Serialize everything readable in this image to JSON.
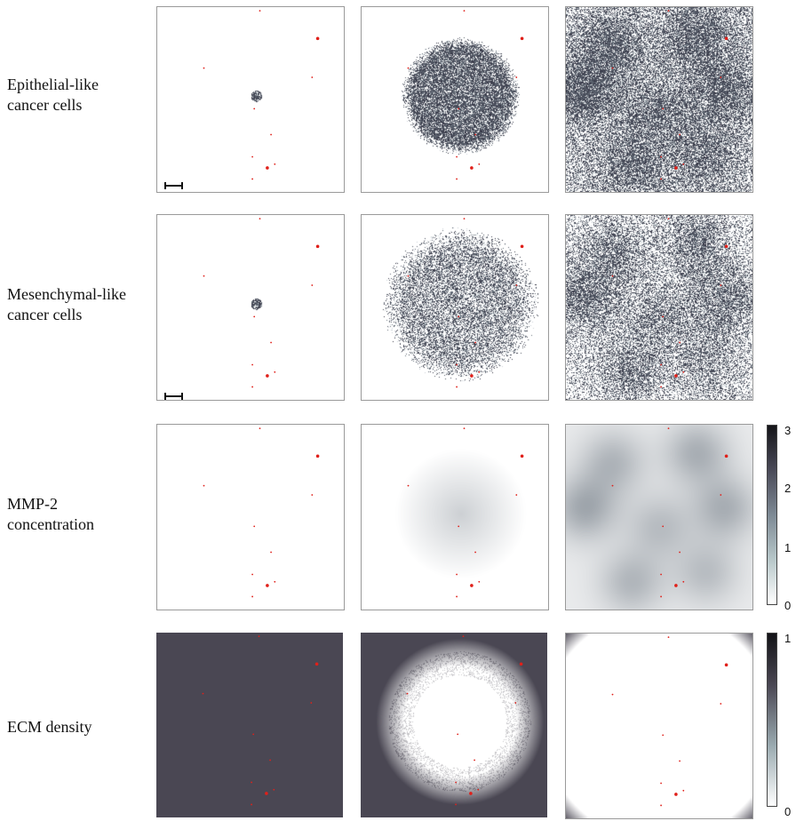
{
  "rows": [
    {
      "label": "Epithelial-like\ncancer cells"
    },
    {
      "label": "Mesenchymal-like\ncancer cells"
    },
    {
      "label": "MMP-2\nconcentration"
    },
    {
      "label": "ECM density"
    }
  ],
  "colorbars": [
    {
      "ticks": [
        "3",
        "2",
        "1",
        "0"
      ],
      "range": [
        0,
        3
      ]
    },
    {
      "ticks": [
        "1",
        "0"
      ],
      "range": [
        0,
        1
      ]
    }
  ],
  "colors": {
    "cell_dark": "#2f2f3f",
    "field_light": "#eef4f4",
    "field_mid": "#9aaab0",
    "ecm_dark": "#4a4753",
    "vessel_red": "#e0201a",
    "frame": "#9a9a9a"
  }
}
